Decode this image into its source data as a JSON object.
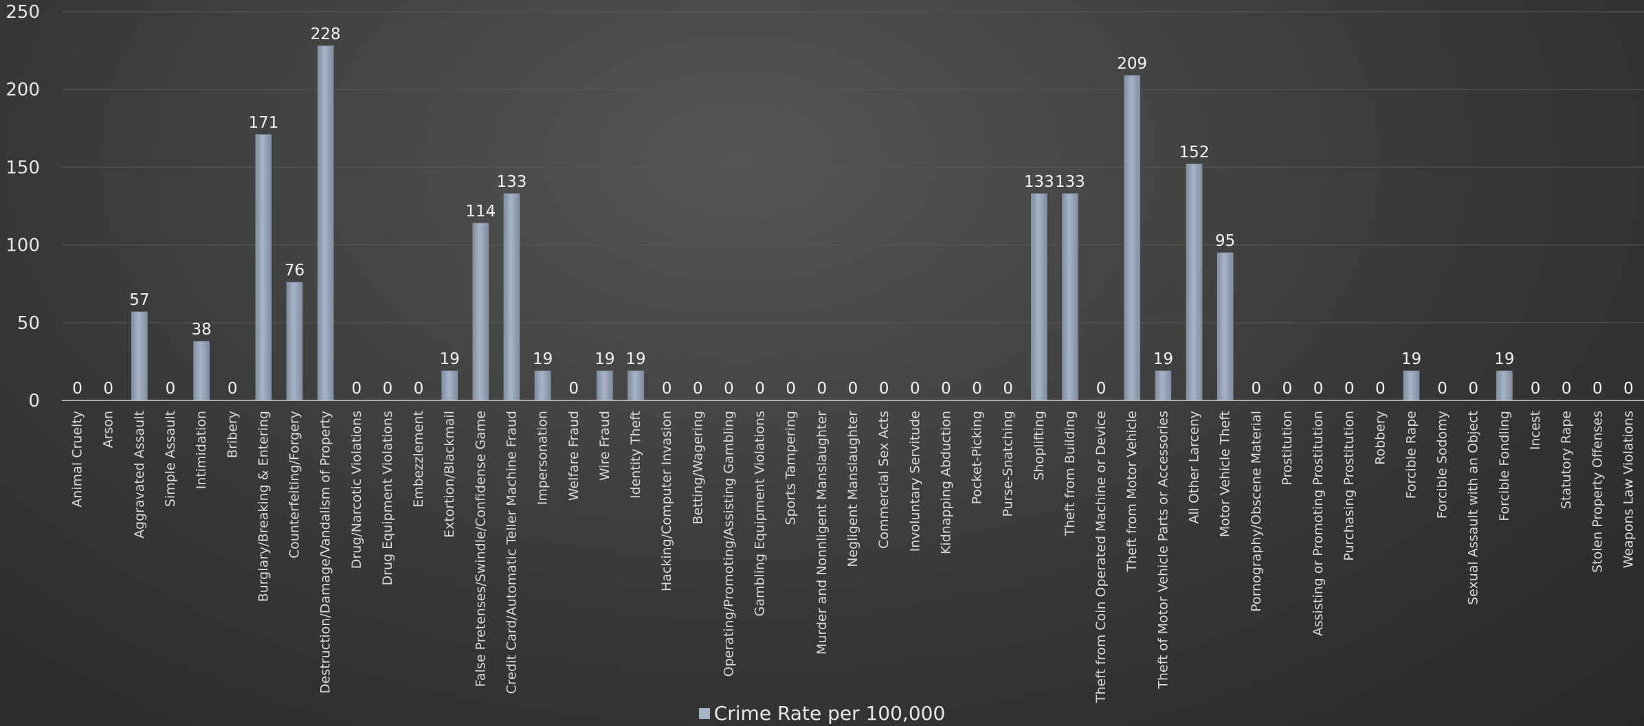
{
  "colors": {
    "bar": "#a7b4c7",
    "bar_shade": "#7f8da1",
    "grid": "#595959",
    "axis": "#cfcfcf"
  },
  "chart_data": {
    "type": "bar",
    "title": "",
    "xlabel": "",
    "ylabel": "",
    "ylim": [
      0,
      250
    ],
    "yticks": [
      0,
      50,
      100,
      150,
      200,
      250
    ],
    "grid": true,
    "legend_position": "bottom",
    "categories": [
      "Animal Cruelty",
      "Arson",
      "Aggravated Assault",
      "Simple Assault",
      "Intimidation",
      "Bribery",
      "Burglary/Breaking & Entering",
      "Counterfeiting/Forgery",
      "Destruction/Damage/Vandalism of Property",
      "Drug/Narcotic Violations",
      "Drug Equipment Violations",
      "Embezzlement",
      "Extortion/Blackmail",
      "False Pretenses/Swindle/Confidense Game",
      "Credit Card/Automatic Teller Machine Fraud",
      "Impersonation",
      "Welfare Fraud",
      "Wire Fraud",
      "Identity Theft",
      "Hacking/Computer Invasion",
      "Betting/Wagering",
      "Operating/Promoting/Assisting Gambling",
      "Gambling Equipment Violations",
      "Sports Tampering",
      "Murder and Nonnligent Manslaughter",
      "Negligent Manslaughter",
      "Commercial Sex Acts",
      "Involuntary Servitude",
      "Kidnapping Abduction",
      "Pocket-Picking",
      "Purse-Snatching",
      "Shoplifting",
      "Theft from Building",
      "Theft from Coin Operated Machine or Device",
      "Theft from Motor Vehicle",
      "Theft of Motor Vehicle Parts or Accessories",
      "All Other Larceny",
      "Motor Vehicle Theft",
      "Pornography/Obscene Material",
      "Prostitution",
      "Assisting or Promoting Prostitution",
      "Purchasing Prostitution",
      "Robbery",
      "Forcible Rape",
      "Forcible Sodomy",
      "Sexual Assault with an Object",
      "Forcible Fondling",
      "Incest",
      "Statutory Rape",
      "Stolen Property Offenses",
      "Weapons Law Violations"
    ],
    "series": [
      {
        "name": "Crime Rate per 100,000",
        "values": [
          0,
          0,
          57,
          0,
          38,
          0,
          171,
          76,
          228,
          0,
          0,
          0,
          19,
          114,
          133,
          19,
          0,
          19,
          19,
          0,
          0,
          0,
          0,
          0,
          0,
          0,
          0,
          0,
          0,
          0,
          0,
          133,
          133,
          0,
          209,
          19,
          152,
          95,
          0,
          0,
          0,
          0,
          0,
          19,
          0,
          0,
          19,
          0,
          0,
          0,
          0
        ]
      }
    ]
  }
}
